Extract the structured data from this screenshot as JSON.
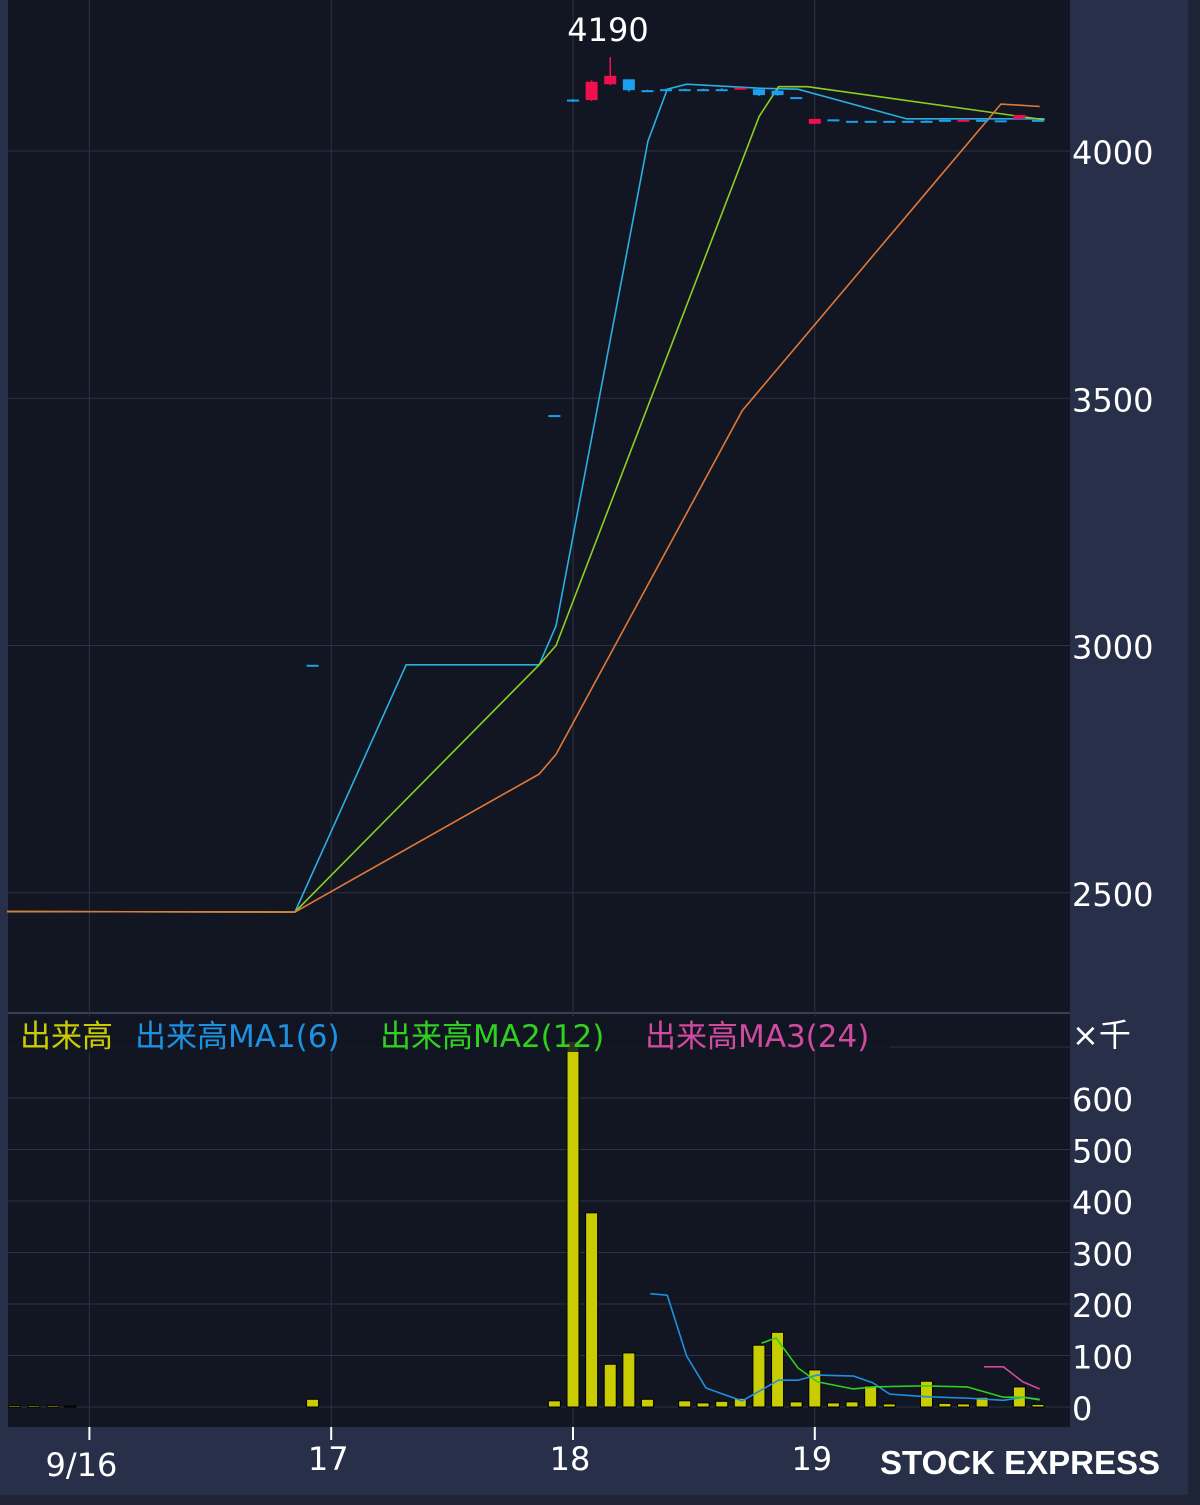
{
  "brand": "STOCK EXPRESS",
  "colors": {
    "background": "#121522",
    "axis_panel": "#283049",
    "grid": "#2c3244",
    "up": "#f0104e",
    "down": "#1aa0ee",
    "volume": "#c8cc00",
    "ma1": "#2ab0e0",
    "ma2": "#8ad020",
    "ma3": "#e07838",
    "vol_ma1": "#1e90e0",
    "vol_ma2": "#30d020",
    "vol_ma3": "#d04aa0"
  },
  "chart_data": [
    {
      "type": "candlestick",
      "high_label": "4190",
      "y_ticks": [
        "4000",
        "3500",
        "3000",
        "2500"
      ],
      "y_tick_values": [
        4000,
        3500,
        3000,
        2500
      ],
      "ylim": [
        2230,
        4300
      ],
      "x_ticks": [
        {
          "label": "9/16",
          "value": 16
        },
        {
          "label": "17",
          "value": 17
        },
        {
          "label": "18",
          "value": 18
        },
        {
          "label": "19",
          "value": 19
        }
      ],
      "xlim": [
        15.66,
        20.05
      ],
      "grid": true,
      "candles": [
        {
          "x": 16.923,
          "o": 2961,
          "h": 2961,
          "l": 2961,
          "c": 2961
        },
        {
          "x": 17.923,
          "o": 3466,
          "h": 3466,
          "l": 3466,
          "c": 3466
        },
        {
          "x": 18.0,
          "o": 4104,
          "h": 4105,
          "l": 4099,
          "c": 4100
        },
        {
          "x": 18.077,
          "o": 4103,
          "h": 4143,
          "l": 4101,
          "c": 4140
        },
        {
          "x": 18.154,
          "o": 4135,
          "h": 4190,
          "l": 4133,
          "c": 4152
        },
        {
          "x": 18.231,
          "o": 4145,
          "h": 4145,
          "l": 4120,
          "c": 4123
        },
        {
          "x": 18.308,
          "o": 4123,
          "h": 4124,
          "l": 4122,
          "c": 4123
        },
        {
          "x": 18.385,
          "o": 4125,
          "h": 4126,
          "l": 4124,
          "c": 4125
        },
        {
          "x": 18.462,
          "o": 4125,
          "h": 4126,
          "l": 4124,
          "c": 4125
        },
        {
          "x": 18.538,
          "o": 4125,
          "h": 4126,
          "l": 4124,
          "c": 4125
        },
        {
          "x": 18.615,
          "o": 4125,
          "h": 4127,
          "l": 4123,
          "c": 4125
        },
        {
          "x": 18.692,
          "o": 4126,
          "h": 4128,
          "l": 4126,
          "c": 4128
        },
        {
          "x": 18.769,
          "o": 4125,
          "h": 4127,
          "l": 4111,
          "c": 4113
        },
        {
          "x": 18.846,
          "o": 4122,
          "h": 4125,
          "l": 4112,
          "c": 4113
        },
        {
          "x": 18.923,
          "o": 4109,
          "h": 4109,
          "l": 4109,
          "c": 4109
        },
        {
          "x": 19.0,
          "o": 4055,
          "h": 4065,
          "l": 4055,
          "c": 4065
        },
        {
          "x": 19.077,
          "o": 4064,
          "h": 4064,
          "l": 4060,
          "c": 4060
        },
        {
          "x": 19.154,
          "o": 4061,
          "h": 4061,
          "l": 4061,
          "c": 4061
        },
        {
          "x": 19.231,
          "o": 4061,
          "h": 4061,
          "l": 4061,
          "c": 4061
        },
        {
          "x": 19.308,
          "o": 4061,
          "h": 4061,
          "l": 4061,
          "c": 4061
        },
        {
          "x": 19.385,
          "o": 4061,
          "h": 4061,
          "l": 4061,
          "c": 4061
        },
        {
          "x": 19.462,
          "o": 4061,
          "h": 4062,
          "l": 4060,
          "c": 4061
        },
        {
          "x": 19.538,
          "o": 4063,
          "h": 4063,
          "l": 4060,
          "c": 4060
        },
        {
          "x": 19.615,
          "o": 4060,
          "h": 4063,
          "l": 4060,
          "c": 4063
        },
        {
          "x": 19.692,
          "o": 4063,
          "h": 4063,
          "l": 4060,
          "c": 4060
        },
        {
          "x": 19.769,
          "o": 4062,
          "h": 4062,
          "l": 4062,
          "c": 4062
        },
        {
          "x": 19.846,
          "o": 4065,
          "h": 4073,
          "l": 4065,
          "c": 4073
        },
        {
          "x": 19.923,
          "o": 4063,
          "h": 4063,
          "l": 4063,
          "c": 4063
        }
      ],
      "moving_averages": [
        {
          "key": "ma1",
          "points": [
            [
              15.66,
              2462
            ],
            [
              16.85,
              2461
            ],
            [
              17.31,
              2961
            ],
            [
              17.86,
              2961
            ],
            [
              17.93,
              3040
            ],
            [
              18.31,
              4020
            ],
            [
              18.39,
              4125
            ],
            [
              18.47,
              4135
            ],
            [
              18.77,
              4127
            ],
            [
              18.93,
              4125
            ],
            [
              19.38,
              4065
            ],
            [
              19.95,
              4065
            ]
          ]
        },
        {
          "key": "ma2",
          "points": [
            [
              15.66,
              2462
            ],
            [
              16.85,
              2461
            ],
            [
              17.86,
              2961
            ],
            [
              17.93,
              3000
            ],
            [
              18.77,
              4070
            ],
            [
              18.85,
              4130
            ],
            [
              18.97,
              4130
            ],
            [
              19.95,
              4063
            ]
          ]
        },
        {
          "key": "ma3",
          "points": [
            [
              15.66,
              2462
            ],
            [
              16.85,
              2461
            ],
            [
              17.86,
              2740
            ],
            [
              17.93,
              2780
            ],
            [
              18.7,
              3475
            ],
            [
              19.77,
              4095
            ],
            [
              19.93,
              4090
            ]
          ]
        }
      ]
    },
    {
      "type": "bar",
      "unit_label": "×千",
      "legend": [
        {
          "label": "出来高",
          "key": "volume"
        },
        {
          "label": "出来高MA1(6)",
          "key": "vol_ma1"
        },
        {
          "label": "出来高MA2(12)",
          "key": "vol_ma2"
        },
        {
          "label": "出来高MA3(24)",
          "key": "vol_ma3"
        }
      ],
      "legend_placement": "top-left",
      "y_ticks": [
        "600",
        "500",
        "400",
        "300",
        "200",
        "100",
        "0"
      ],
      "y_tick_values": [
        600,
        500,
        400,
        300,
        200,
        100,
        0
      ],
      "ylim": [
        0,
        745
      ],
      "grid": true,
      "volumes": [
        {
          "x": 15.69,
          "v": 3
        },
        {
          "x": 15.77,
          "v": 3
        },
        {
          "x": 15.85,
          "v": 3
        },
        {
          "x": 15.92,
          "v": 2
        },
        {
          "x": 16.923,
          "v": 15
        },
        {
          "x": 17.923,
          "v": 12
        },
        {
          "x": 18.0,
          "v": 710
        },
        {
          "x": 18.077,
          "v": 377
        },
        {
          "x": 18.154,
          "v": 83
        },
        {
          "x": 18.231,
          "v": 105
        },
        {
          "x": 18.308,
          "v": 15
        },
        {
          "x": 18.385,
          "v": 0
        },
        {
          "x": 18.462,
          "v": 12
        },
        {
          "x": 18.538,
          "v": 8
        },
        {
          "x": 18.615,
          "v": 11
        },
        {
          "x": 18.692,
          "v": 17
        },
        {
          "x": 18.769,
          "v": 120
        },
        {
          "x": 18.846,
          "v": 145
        },
        {
          "x": 18.923,
          "v": 10
        },
        {
          "x": 19.0,
          "v": 72
        },
        {
          "x": 19.077,
          "v": 8
        },
        {
          "x": 19.154,
          "v": 10
        },
        {
          "x": 19.231,
          "v": 41
        },
        {
          "x": 19.308,
          "v": 6
        },
        {
          "x": 19.385,
          "v": 0
        },
        {
          "x": 19.462,
          "v": 50
        },
        {
          "x": 19.538,
          "v": 7
        },
        {
          "x": 19.615,
          "v": 6
        },
        {
          "x": 19.692,
          "v": 19
        },
        {
          "x": 19.769,
          "v": 0
        },
        {
          "x": 19.846,
          "v": 39
        },
        {
          "x": 19.923,
          "v": 5
        }
      ],
      "moving_averages": [
        {
          "key": "vol_ma1",
          "points": [
            [
              18.32,
              220
            ],
            [
              18.39,
              217
            ],
            [
              18.47,
              99
            ],
            [
              18.55,
              37
            ],
            [
              18.62,
              25
            ],
            [
              18.7,
              12
            ],
            [
              18.85,
              52
            ],
            [
              18.93,
              52
            ],
            [
              19.01,
              62
            ],
            [
              19.16,
              60
            ],
            [
              19.24,
              47
            ],
            [
              19.31,
              25
            ],
            [
              19.46,
              20
            ],
            [
              19.64,
              17
            ],
            [
              19.78,
              13
            ],
            [
              19.86,
              19
            ],
            [
              19.93,
              15
            ]
          ]
        },
        {
          "key": "vol_ma2",
          "points": [
            [
              18.78,
              124
            ],
            [
              18.84,
              134
            ],
            [
              18.93,
              76
            ],
            [
              19.01,
              49
            ],
            [
              19.16,
              35
            ],
            [
              19.24,
              39
            ],
            [
              19.45,
              41
            ],
            [
              19.63,
              39
            ],
            [
              19.78,
              19
            ],
            [
              19.86,
              19
            ],
            [
              19.93,
              14
            ]
          ]
        },
        {
          "key": "vol_ma3",
          "points": [
            [
              19.7,
              78
            ],
            [
              19.78,
              78
            ],
            [
              19.86,
              49
            ],
            [
              19.93,
              35
            ]
          ]
        }
      ]
    }
  ]
}
